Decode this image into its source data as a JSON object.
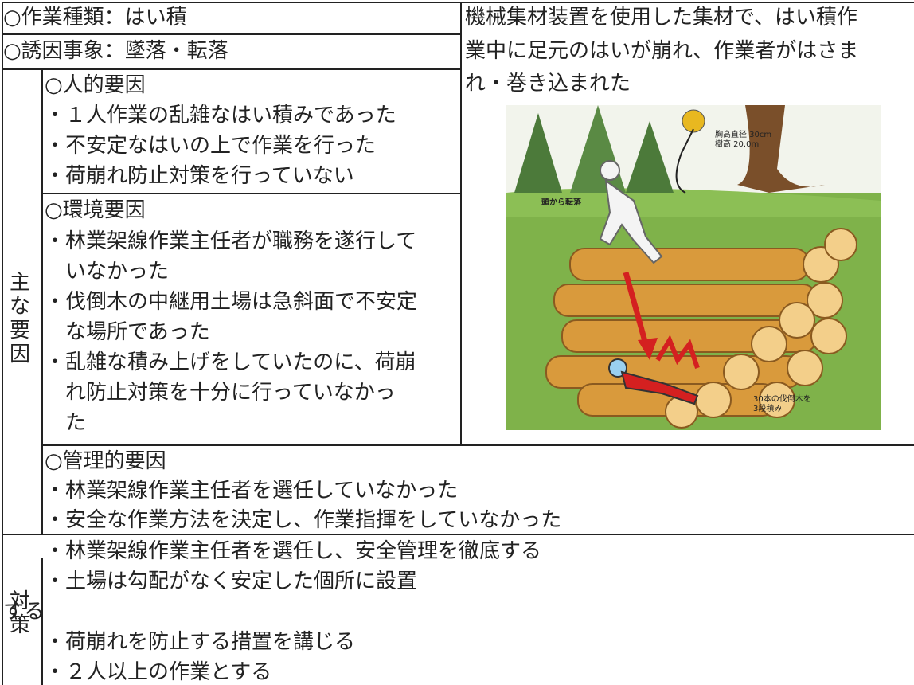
{
  "header": {
    "work_type": "○作業種類：はい積",
    "incident": "○誘因事象：墜落・転落"
  },
  "description": {
    "lines": [
      "機械集材装置を使用した集材で、はい積作",
      "業中に足元のはいが崩れ、作業者がはさま",
      "れ・巻き込まれた"
    ]
  },
  "illustration": {
    "tree_spec": [
      "胸高直径 30cm",
      "樹高 20.0m"
    ],
    "fall_note": "頭から転落",
    "pile_note": [
      "30本の伐倒木を",
      "3段積み"
    ]
  },
  "factors": {
    "label": "主な要因",
    "human": {
      "heading": "○人的要因",
      "items": [
        "・１人作業の乱雑なはい積みであった",
        "・不安定なはいの上で作業を行った",
        "・荷崩れ防止対策を行っていない"
      ]
    },
    "environmental": {
      "heading": "○環境要因",
      "items": [
        [
          "・林業架線作業主任者が職務を遂行して",
          "いなかった"
        ],
        [
          "・伐倒木の中継用土場は急斜面で不安定",
          "な場所であった"
        ],
        [
          "・乱雑な積み上げをしていたのに、荷崩",
          "れ防止対策を十分に行っていなかっ",
          "た"
        ]
      ]
    },
    "management": {
      "heading": "○管理的要因",
      "items": [
        "・林業架線作業主任者を選任していなかった",
        "・安全な作業方法を決定し、作業指揮をしていなかった"
      ]
    }
  },
  "countermeasures": {
    "label": "対策",
    "items": [
      [
        "・林業架線作業主任者を選任し、安全管理を徹底する"
      ],
      [
        "・土場は勾配がなく安定した個所に設置",
        "する"
      ],
      [
        "・荷崩れを防止する措置を講じる"
      ],
      [
        "・２人以上の作業とする"
      ]
    ]
  }
}
